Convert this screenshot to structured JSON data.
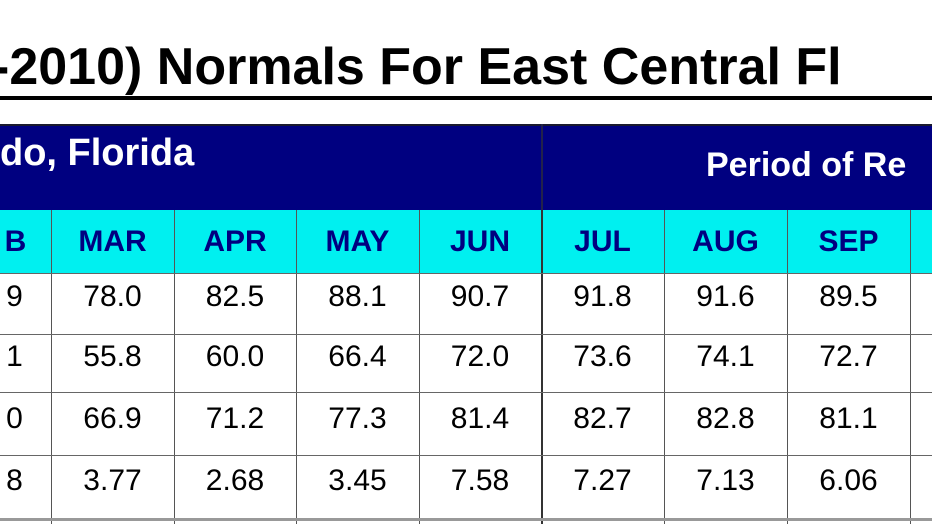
{
  "title": "-2010) Normals For East Central Fl",
  "station": "do, Florida",
  "period_label": "Period of Re",
  "months": [
    "B",
    "MAR",
    "APR",
    "MAY",
    "JUN",
    "JUL",
    "AUG",
    "SEP"
  ],
  "rows": [
    [
      "9",
      "78.0",
      "82.5",
      "88.1",
      "90.7",
      "91.8",
      "91.6",
      "89.5"
    ],
    [
      "1",
      "55.8",
      "60.0",
      "66.4",
      "72.0",
      "73.6",
      "74.1",
      "72.7"
    ],
    [
      "0",
      "66.9",
      "71.2",
      "77.3",
      "81.4",
      "82.7",
      "82.8",
      "81.1"
    ],
    [
      "8",
      "3.77",
      "2.68",
      "3.45",
      "7.58",
      "7.27",
      "7.13",
      "6.06"
    ]
  ],
  "colors": {
    "header_band": "#000080",
    "month_row": "#00f0f0",
    "month_text": "#000080"
  }
}
